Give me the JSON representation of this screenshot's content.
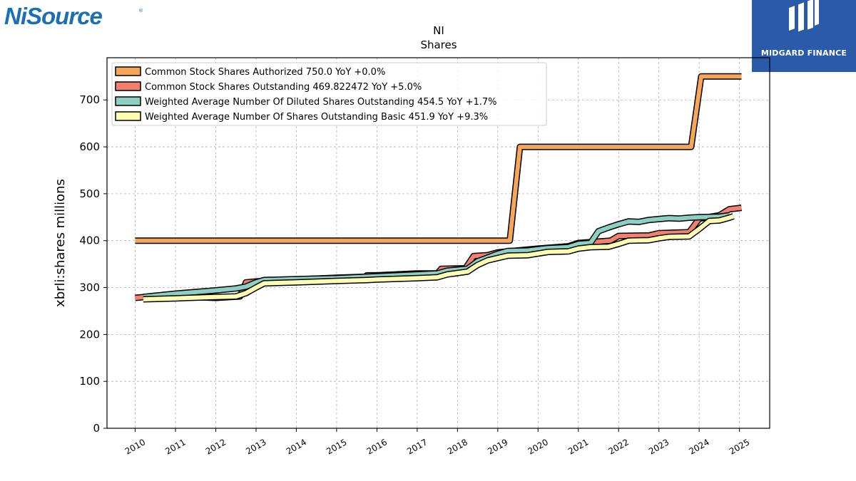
{
  "logos": {
    "left_text": "NiSource",
    "left_registered": "®",
    "right_text": "MIDGARD FINANCE",
    "right_icon": "midgard-finance-emblem",
    "right_bg": "#2a5aa8",
    "left_color": "#1b6fb3"
  },
  "chart_data": {
    "type": "line",
    "title": "NI",
    "subtitle": "Shares",
    "xlabel": "",
    "ylabel": "xbrli:shares millions",
    "xlim": [
      2009.3,
      2025.75
    ],
    "ylim": [
      0,
      790
    ],
    "yticks": [
      0,
      100,
      200,
      300,
      400,
      500,
      600,
      700
    ],
    "xticks": [
      2010,
      2011,
      2012,
      2013,
      2014,
      2015,
      2016,
      2017,
      2018,
      2019,
      2020,
      2021,
      2022,
      2023,
      2024,
      2025
    ],
    "grid": true,
    "legend_position": "top-left",
    "series": [
      {
        "name": "Common Stock Shares Authorized",
        "legend": "Common Stock Shares Authorized  750.0 YoY +0.0%",
        "color": "#f5a65b",
        "points": [
          [
            2010.0,
            400
          ],
          [
            2019.3,
            400
          ],
          [
            2019.55,
            600
          ],
          [
            2023.8,
            600
          ],
          [
            2024.05,
            750
          ],
          [
            2025.05,
            750
          ]
        ]
      },
      {
        "name": "Common Stock Shares Outstanding",
        "legend": "Common Stock Shares Outstanding  469.822472 YoY +5.0%",
        "color": "#f08070",
        "points": [
          [
            2010.0,
            278
          ],
          [
            2010.25,
            280
          ],
          [
            2011.0,
            281
          ],
          [
            2012.0,
            278
          ],
          [
            2012.6,
            281
          ],
          [
            2012.75,
            311
          ],
          [
            2013.0,
            313
          ],
          [
            2014.0,
            317
          ],
          [
            2015.0,
            321
          ],
          [
            2015.7,
            323
          ],
          [
            2015.75,
            326
          ],
          [
            2016.0,
            326
          ],
          [
            2017.0,
            330
          ],
          [
            2017.5,
            330
          ],
          [
            2017.6,
            340
          ],
          [
            2018.2,
            341
          ],
          [
            2018.4,
            367
          ],
          [
            2018.75,
            369
          ],
          [
            2019.0,
            375
          ],
          [
            2019.5,
            379
          ],
          [
            2020.0,
            383
          ],
          [
            2020.75,
            388
          ],
          [
            2021.0,
            395
          ],
          [
            2021.5,
            398
          ],
          [
            2021.8,
            400
          ],
          [
            2022.0,
            410
          ],
          [
            2022.75,
            411
          ],
          [
            2023.0,
            416
          ],
          [
            2023.75,
            418
          ],
          [
            2024.0,
            447
          ],
          [
            2024.5,
            454
          ],
          [
            2024.75,
            467
          ],
          [
            2025.05,
            470
          ]
        ]
      },
      {
        "name": "Weighted Average Number Of Diluted Shares Outstanding",
        "legend": "Weighted Average Number Of Diluted Shares Outstanding  454.5 YoY +1.7%",
        "color": "#8dcfc2",
        "points": [
          [
            2010.2,
            280
          ],
          [
            2011.0,
            287
          ],
          [
            2012.0,
            294
          ],
          [
            2012.5,
            298
          ],
          [
            2012.75,
            302
          ],
          [
            2013.0,
            311
          ],
          [
            2013.2,
            316
          ],
          [
            2014.0,
            318
          ],
          [
            2015.0,
            320
          ],
          [
            2016.0,
            324
          ],
          [
            2017.0,
            328
          ],
          [
            2017.5,
            330
          ],
          [
            2017.75,
            336
          ],
          [
            2018.25,
            340
          ],
          [
            2018.5,
            356
          ],
          [
            2018.75,
            364
          ],
          [
            2019.0,
            372
          ],
          [
            2019.25,
            378
          ],
          [
            2019.75,
            379
          ],
          [
            2020.25,
            384
          ],
          [
            2020.75,
            386
          ],
          [
            2021.0,
            393
          ],
          [
            2021.3,
            395
          ],
          [
            2021.5,
            420
          ],
          [
            2021.75,
            428
          ],
          [
            2022.0,
            435
          ],
          [
            2022.25,
            441
          ],
          [
            2022.5,
            440
          ],
          [
            2022.75,
            444
          ],
          [
            2023.0,
            446
          ],
          [
            2023.25,
            448
          ],
          [
            2023.5,
            447
          ],
          [
            2023.75,
            449
          ],
          [
            2024.0,
            450
          ],
          [
            2024.5,
            451
          ],
          [
            2024.75,
            454
          ]
        ]
      },
      {
        "name": "Weighted Average Number Of Shares Outstanding Basic",
        "legend": "Weighted Average Number Of Shares Outstanding Basic  451.9 YoY +9.3%",
        "color": "#fdfdb4",
        "points": [
          [
            2010.2,
            275
          ],
          [
            2011.0,
            277
          ],
          [
            2012.0,
            280
          ],
          [
            2012.5,
            281
          ],
          [
            2012.75,
            288
          ],
          [
            2013.0,
            300
          ],
          [
            2013.2,
            309
          ],
          [
            2014.0,
            311
          ],
          [
            2015.0,
            314
          ],
          [
            2015.75,
            316
          ],
          [
            2016.0,
            317
          ],
          [
            2017.0,
            320
          ],
          [
            2017.5,
            322
          ],
          [
            2017.75,
            328
          ],
          [
            2018.25,
            334
          ],
          [
            2018.5,
            348
          ],
          [
            2018.75,
            358
          ],
          [
            2019.0,
            363
          ],
          [
            2019.25,
            368
          ],
          [
            2019.75,
            369
          ],
          [
            2020.25,
            376
          ],
          [
            2020.75,
            377
          ],
          [
            2021.0,
            383
          ],
          [
            2021.3,
            386
          ],
          [
            2021.75,
            387
          ],
          [
            2022.0,
            393
          ],
          [
            2022.25,
            400
          ],
          [
            2022.75,
            401
          ],
          [
            2023.0,
            405
          ],
          [
            2023.25,
            408
          ],
          [
            2023.75,
            409
          ],
          [
            2024.0,
            425
          ],
          [
            2024.25,
            442
          ],
          [
            2024.5,
            443
          ],
          [
            2024.75,
            449
          ],
          [
            2024.85,
            452
          ]
        ]
      }
    ]
  }
}
